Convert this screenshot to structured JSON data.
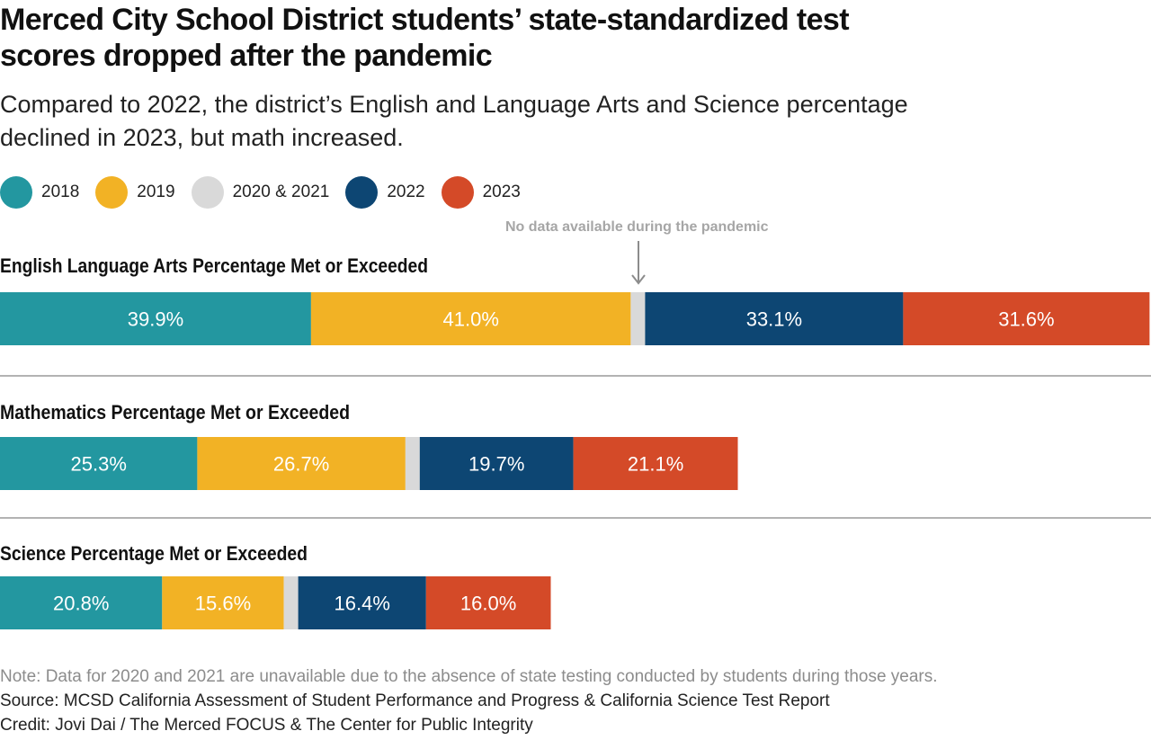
{
  "title": "Merced City School District students’ state-standardized test scores dropped after the pandemic",
  "subtitle": "Compared to 2022, the district’s English and Language Arts and Science percentage declined in 2023, but math increased.",
  "pandemic_note": "No data available during the pandemic",
  "colors": {
    "2018": "#2397a0",
    "2019": "#f2b225",
    "2020 & 2021": "#d9d9d9",
    "2022": "#0d4673",
    "2023": "#d44a28"
  },
  "legend": [
    {
      "label": "2018",
      "color": "#2397a0"
    },
    {
      "label": "2019",
      "color": "#f2b225"
    },
    {
      "label": "2020 & 2021",
      "color": "#d9d9d9"
    },
    {
      "label": "2022",
      "color": "#0d4673"
    },
    {
      "label": "2023",
      "color": "#d44a28"
    }
  ],
  "chart_data": {
    "type": "bar",
    "orientation": "horizontal-stacked",
    "categories": [
      "2018",
      "2019",
      "2020 & 2021",
      "2022",
      "2023"
    ],
    "units": "percent",
    "panels": [
      {
        "id": "ela",
        "title": "English Language Arts Percentage Met or Exceeded",
        "values": [
          39.9,
          41.0,
          null,
          33.1,
          31.6
        ],
        "labels": [
          "39.9%",
          "41.0%",
          "",
          "33.1%",
          "31.6%"
        ]
      },
      {
        "id": "math",
        "title": "Mathematics Percentage Met or Exceeded",
        "values": [
          25.3,
          26.7,
          null,
          19.7,
          21.1
        ],
        "labels": [
          "25.3%",
          "26.7%",
          "",
          "19.7%",
          "21.1%"
        ]
      },
      {
        "id": "science",
        "title": "Science Percentage Met or Exceeded",
        "values": [
          20.8,
          15.6,
          null,
          16.4,
          16.0
        ],
        "labels": [
          "20.8%",
          "15.6%",
          "",
          "16.4%",
          "16.0%"
        ]
      }
    ]
  },
  "footer": {
    "note": "Note: Data for 2020 and 2021 are unavailable due to the absence of state testing conducted by students during those years.",
    "source": "Source: MCSD California Assessment of Student Performance and Progress & California Science Test Report",
    "credit": "Credit: Jovi Dai / The Merced FOCUS & The Center for Public Integrity"
  }
}
